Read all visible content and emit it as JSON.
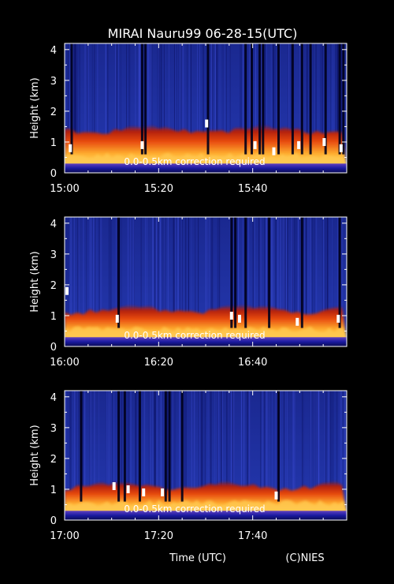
{
  "title": "MIRAI Nauru99 06-28-15(UTC)",
  "footer": {
    "xlabel": "Time (UTC)",
    "credit": "(C)NIES"
  },
  "colors": {
    "background": "#000000",
    "clear_sky": "#1a2a9a",
    "boundary_layer": "#d83010",
    "aerosol_peak": "#ffd860",
    "cloud": "#ffffff"
  },
  "chart_data": [
    {
      "type": "heatmap",
      "ylabel": "Height (km)",
      "yticks": [
        "0",
        "1",
        "2",
        "3",
        "4"
      ],
      "ylim": [
        0,
        4.2
      ],
      "xticks": [
        "15:00",
        "15:20",
        "15:40"
      ],
      "xlim_minutes": [
        0,
        60
      ],
      "annotation": "0.0-0.5km correction required",
      "boundary_layer_top_km": 1.4,
      "dropouts_minutes": [
        1.5,
        16.5,
        17.2,
        30.5,
        38.5,
        39.8,
        41.5,
        42.2,
        45.5,
        48.5,
        50.5,
        52.3,
        55.5,
        58.5,
        59.3
      ],
      "clouds": [
        [
          1.2,
          0.8
        ],
        [
          16.5,
          0.9
        ],
        [
          30.2,
          1.6
        ],
        [
          40.5,
          0.9
        ],
        [
          44.5,
          0.7
        ],
        [
          49.8,
          0.9
        ],
        [
          55.2,
          1.0
        ],
        [
          58.8,
          0.8
        ]
      ]
    },
    {
      "type": "heatmap",
      "ylabel": "Height (km)",
      "yticks": [
        "0",
        "1",
        "2",
        "3",
        "4"
      ],
      "ylim": [
        0,
        4.2
      ],
      "xticks": [
        "16:00",
        "16:20",
        "16:40"
      ],
      "xlim_minutes": [
        0,
        60
      ],
      "annotation": "0.0-0.5km correction required",
      "boundary_layer_top_km": 1.2,
      "dropouts_minutes": [
        11.5,
        35.5,
        36.3,
        38.5,
        43.5,
        50.5,
        58.5
      ],
      "clouds": [
        [
          0.5,
          1.8
        ],
        [
          11.2,
          0.9
        ],
        [
          35.5,
          1.0
        ],
        [
          37.2,
          0.9
        ],
        [
          49.5,
          0.8
        ],
        [
          58.2,
          0.9
        ]
      ]
    },
    {
      "type": "heatmap",
      "ylabel": "Height (km)",
      "yticks": [
        "0",
        "1",
        "2",
        "3",
        "4"
      ],
      "ylim": [
        0,
        4.2
      ],
      "xticks": [
        "17:00",
        "17:20",
        "17:40"
      ],
      "xlim_minutes": [
        0,
        60
      ],
      "annotation": "0.0-0.5km correction required",
      "boundary_layer_top_km": 1.1,
      "dropouts_minutes": [
        3.5,
        11.5,
        12.8,
        16.0,
        21.5,
        22.3,
        25.0,
        45.5
      ],
      "clouds": [
        [
          10.5,
          1.1
        ],
        [
          13.5,
          1.0
        ],
        [
          16.8,
          0.9
        ],
        [
          20.8,
          0.9
        ],
        [
          45.0,
          0.8
        ]
      ]
    }
  ]
}
